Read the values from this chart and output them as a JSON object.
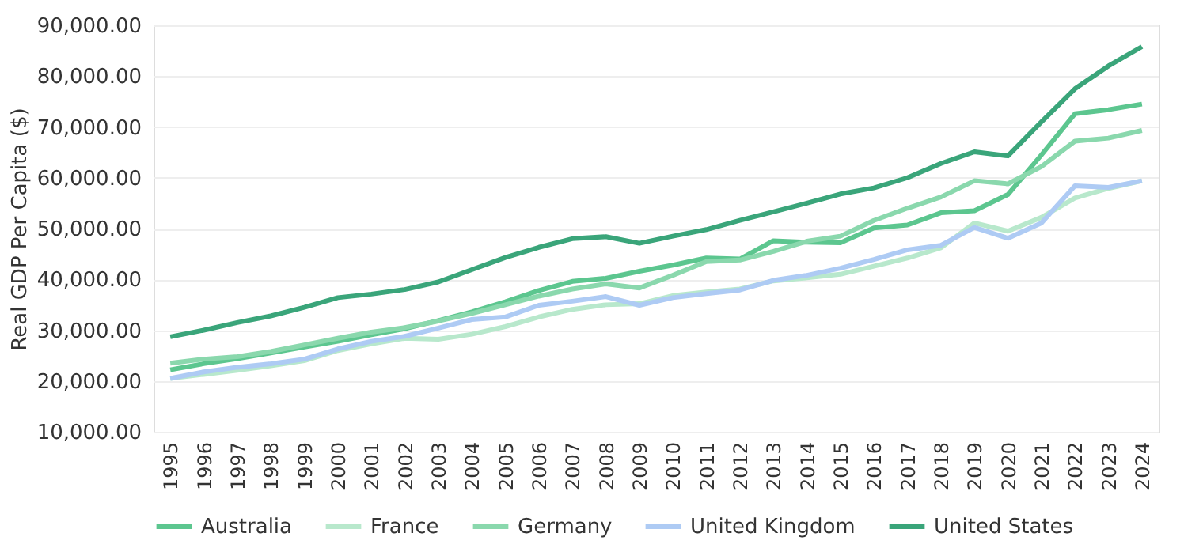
{
  "chart_data": {
    "type": "line",
    "ylabel": "Real GDP Per Capita ($)",
    "categories": [
      "1995",
      "1996",
      "1997",
      "1998",
      "1999",
      "2000",
      "2001",
      "2002",
      "2003",
      "2004",
      "2005",
      "2006",
      "2007",
      "2008",
      "2009",
      "2010",
      "2011",
      "2012",
      "2013",
      "2014",
      "2015",
      "2016",
      "2017",
      "2018",
      "2019",
      "2020",
      "2021",
      "2022",
      "2023",
      "2024"
    ],
    "ylim": [
      10000,
      90000
    ],
    "yticks": [
      {
        "value": 10000,
        "label": "10,000.00"
      },
      {
        "value": 20000,
        "label": "20,000.00"
      },
      {
        "value": 30000,
        "label": "30,000.00"
      },
      {
        "value": 40000,
        "label": "40,000.00"
      },
      {
        "value": 50000,
        "label": "50,000.00"
      },
      {
        "value": 60000,
        "label": "60,000.00"
      },
      {
        "value": 70000,
        "label": "70,000.00"
      },
      {
        "value": 80000,
        "label": "80,000.00"
      },
      {
        "value": 90000,
        "label": "90,000.00"
      }
    ],
    "grid": "y",
    "legend": "bottom",
    "marker": "none",
    "line_style": "solid",
    "series": [
      {
        "name": "Australia",
        "color": "#5cc68f",
        "values": [
          22200,
          23400,
          24400,
          25500,
          26700,
          27800,
          29100,
          30300,
          31900,
          33600,
          35600,
          37800,
          39600,
          40200,
          41600,
          42800,
          44200,
          44000,
          47600,
          47300,
          47200,
          50100,
          50700,
          53100,
          53500,
          56700,
          64500,
          72600,
          73400,
          74500
        ]
      },
      {
        "name": "France",
        "color": "#b8e8cc",
        "values": [
          20500,
          21300,
          22100,
          23000,
          24000,
          26000,
          27300,
          28400,
          28200,
          29200,
          30700,
          32600,
          34100,
          35000,
          35200,
          36800,
          37500,
          38100,
          39700,
          40300,
          41000,
          42600,
          44200,
          46200,
          51100,
          49500,
          52200,
          56000,
          57900,
          59400
        ]
      },
      {
        "name": "Germany",
        "color": "#8ad8ad",
        "values": [
          23500,
          24300,
          24800,
          25800,
          27100,
          28400,
          29600,
          30500,
          31800,
          33300,
          35000,
          36700,
          38100,
          39100,
          38300,
          40800,
          43500,
          43800,
          45500,
          47500,
          48500,
          51600,
          54000,
          56200,
          59400,
          58800,
          62200,
          67200,
          67800,
          69300
        ]
      },
      {
        "name": "United Kingdom",
        "color": "#aecbf4",
        "values": [
          20500,
          21800,
          22700,
          23400,
          24300,
          26300,
          27800,
          28800,
          30400,
          32100,
          32600,
          34900,
          35700,
          36600,
          34900,
          36400,
          37200,
          37900,
          39800,
          40800,
          42200,
          43900,
          45800,
          46700,
          50200,
          48100,
          51100,
          58400,
          58100,
          59400
        ]
      },
      {
        "name": "United States",
        "color": "#3aa57a",
        "values": [
          28700,
          30000,
          31500,
          32800,
          34500,
          36400,
          37100,
          38000,
          39500,
          41900,
          44300,
          46300,
          48000,
          48400,
          47100,
          48500,
          49800,
          51600,
          53300,
          55000,
          56800,
          58000,
          60000,
          62800,
          65100,
          64300,
          71000,
          77500,
          82000,
          85800
        ]
      }
    ]
  }
}
